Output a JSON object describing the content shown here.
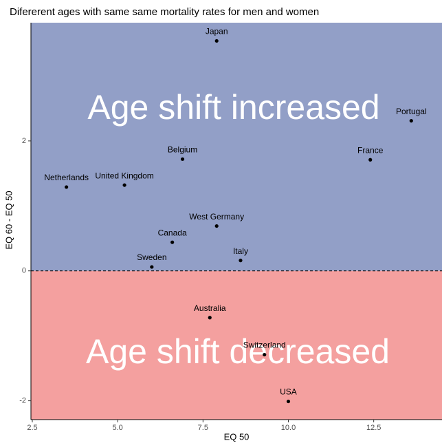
{
  "chart_data": {
    "type": "scatter",
    "title": "Difererent ages with same same mortality rates for men and women",
    "x_label": "EQ 50",
    "y_label": "EQ 60 - EQ 50",
    "labels": [
      "Japan",
      "Portugal",
      "Belgium",
      "France",
      "Netherlands",
      "United Kingdom",
      "West Germany",
      "Canada",
      "Italy",
      "Sweden",
      "Australia",
      "Switzerland",
      "USA"
    ],
    "x": [
      7.9,
      13.6,
      6.9,
      12.4,
      3.5,
      5.2,
      7.9,
      6.6,
      8.6,
      6.0,
      7.7,
      9.3,
      10.0
    ],
    "y": [
      3.54,
      2.31,
      1.72,
      1.71,
      1.29,
      1.32,
      0.69,
      0.44,
      0.16,
      0.06,
      -0.72,
      -1.29,
      -2.01
    ],
    "color": "#000000",
    "xlim": [
      2.46,
      14.5
    ],
    "ylim": [
      -2.29,
      3.82
    ],
    "xticks": [
      2.5,
      {
        "value": 5,
        "label": "5.0"
      },
      7.5,
      {
        "value": 10,
        "label": "10.0"
      },
      12.5
    ],
    "yticks": [
      -2,
      0,
      2
    ],
    "hline": 0,
    "region_colors": {
      "above": "#929fc7",
      "below": "#f4a09f"
    },
    "annotations": [
      "Age shift increased",
      "Age shift decreased"
    ]
  }
}
